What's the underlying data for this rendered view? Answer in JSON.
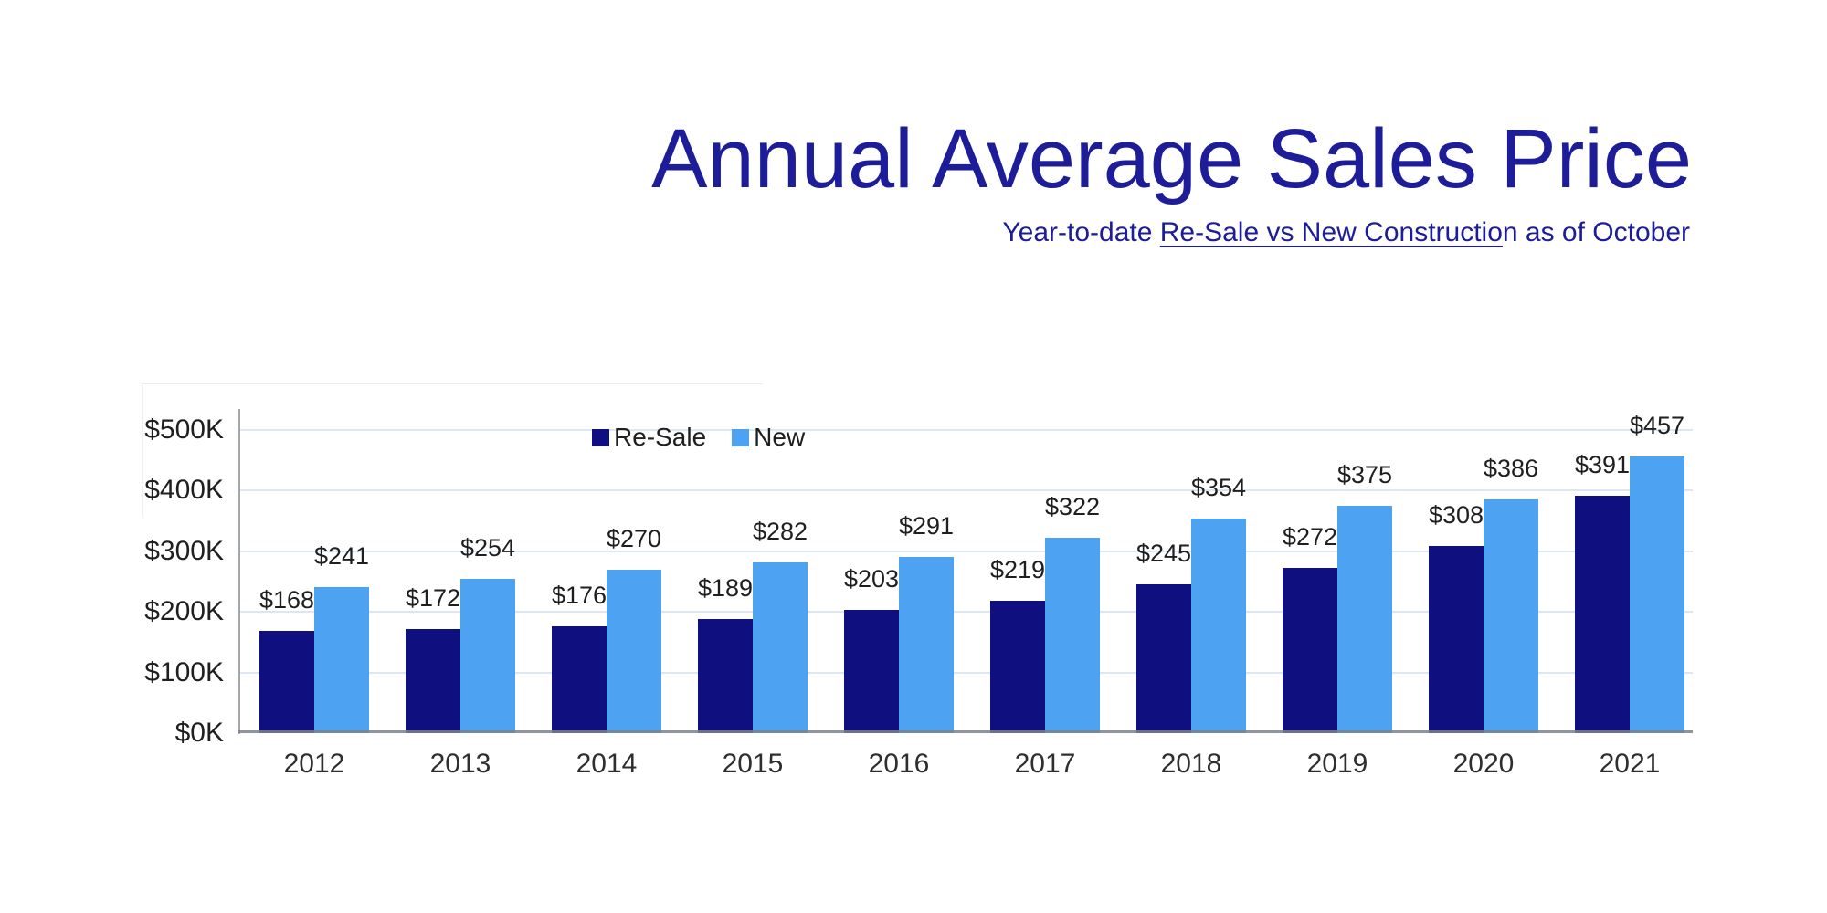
{
  "header": {
    "title": "Annual Average Sales Price",
    "subtitle_prefix": "Year-to-date ",
    "subtitle_underlined": "Re-Sale vs New Constructio",
    "subtitle_suffix": "n as of October"
  },
  "colors": {
    "title_navy": "#1d1d99",
    "resale_bar": "#0f0f80",
    "new_bar": "#4da2f2",
    "gridline": "#dde7f3",
    "axis": "#a2a7ad",
    "label_text": "#1f1f1f"
  },
  "chart_data": {
    "type": "bar",
    "title": "Annual Average Sales Price",
    "subtitle": "Year-to-date Re-Sale vs New Construction as of October",
    "categories": [
      "2012",
      "2013",
      "2014",
      "2015",
      "2016",
      "2017",
      "2018",
      "2019",
      "2020",
      "2021"
    ],
    "series": [
      {
        "name": "Re-Sale",
        "color": "#0f0f80",
        "values": [
          168,
          172,
          176,
          189,
          203,
          219,
          245,
          272,
          308,
          391
        ]
      },
      {
        "name": "New",
        "color": "#4da2f2",
        "values": [
          241,
          254,
          270,
          282,
          291,
          322,
          354,
          375,
          386,
          457
        ]
      }
    ],
    "value_label_prefix": "$",
    "xlabel": "",
    "ylabel": "",
    "y_ticks": [
      "$0K",
      "$100K",
      "$200K",
      "$300K",
      "$400K",
      "$500K"
    ],
    "y_tick_values": [
      0,
      100,
      200,
      300,
      400,
      500
    ],
    "ylim": [
      0,
      500
    ],
    "grid": true,
    "legend_position": "inside-top-left"
  }
}
